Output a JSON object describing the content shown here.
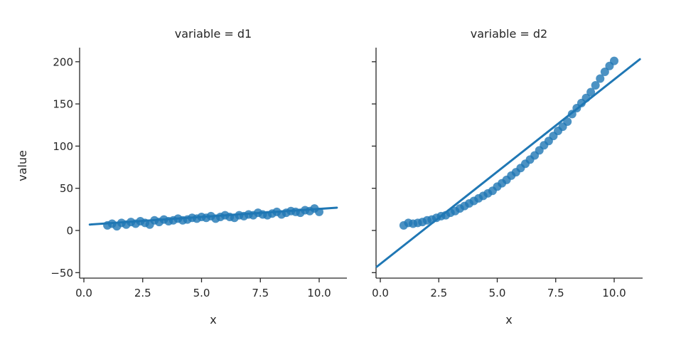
{
  "chart_data": {
    "type": "scatter",
    "layout": "facet-grid (1 row x 2 cols, sharey)",
    "ylabel": "value",
    "ylim": [
      -57,
      216
    ],
    "yticks": [
      -50,
      0,
      50,
      100,
      150,
      200
    ],
    "ytick_labels": [
      "−50",
      "0",
      "50",
      "100",
      "150",
      "200"
    ],
    "xticks": [
      0.0,
      2.5,
      5.0,
      7.5,
      10.0
    ],
    "xtick_labels": [
      "0.0",
      "2.5",
      "5.0",
      "7.5",
      "10.0"
    ],
    "grid": false,
    "color": "#1f77b4",
    "panels": [
      {
        "title": "variable = d1",
        "xlabel": "x",
        "xlim": [
          -0.2,
          11.2
        ],
        "regression": {
          "x0": 0.25,
          "y0": 7,
          "x1": 10.75,
          "y1": 27
        },
        "x": [
          1.0,
          1.2,
          1.4,
          1.6,
          1.8,
          2.0,
          2.2,
          2.4,
          2.6,
          2.8,
          3.0,
          3.2,
          3.4,
          3.6,
          3.8,
          4.0,
          4.2,
          4.4,
          4.6,
          4.8,
          5.0,
          5.2,
          5.4,
          5.6,
          5.8,
          6.0,
          6.2,
          6.4,
          6.6,
          6.8,
          7.0,
          7.2,
          7.4,
          7.6,
          7.8,
          8.0,
          8.2,
          8.4,
          8.6,
          8.8,
          9.0,
          9.2,
          9.4,
          9.6,
          9.8,
          10.0
        ],
        "y": [
          6,
          8,
          5,
          9,
          7,
          10,
          8,
          11,
          9,
          7,
          12,
          10,
          13,
          11,
          12,
          14,
          12,
          13,
          15,
          14,
          16,
          15,
          17,
          14,
          16,
          18,
          16,
          15,
          18,
          17,
          19,
          18,
          21,
          19,
          18,
          20,
          22,
          19,
          21,
          23,
          22,
          21,
          24,
          23,
          26,
          22
        ]
      },
      {
        "title": "variable = d2",
        "xlabel": "x",
        "xlim": [
          -0.2,
          11.2
        ],
        "regression": {
          "x0": -0.15,
          "y0": -43,
          "x1": 11.1,
          "y1": 203
        },
        "x": [
          1.0,
          1.2,
          1.4,
          1.6,
          1.8,
          2.0,
          2.2,
          2.4,
          2.6,
          2.8,
          3.0,
          3.2,
          3.4,
          3.6,
          3.8,
          4.0,
          4.2,
          4.4,
          4.6,
          4.8,
          5.0,
          5.2,
          5.4,
          5.6,
          5.8,
          6.0,
          6.2,
          6.4,
          6.6,
          6.8,
          7.0,
          7.2,
          7.4,
          7.6,
          7.8,
          8.0,
          8.2,
          8.4,
          8.6,
          8.8,
          9.0,
          9.2,
          9.4,
          9.6,
          9.8,
          10.0
        ],
        "y": [
          6,
          9,
          8,
          9,
          10,
          12,
          13,
          15,
          17,
          18,
          21,
          23,
          26,
          29,
          32,
          35,
          38,
          41,
          44,
          47,
          52,
          56,
          60,
          65,
          69,
          74,
          79,
          84,
          89,
          95,
          101,
          106,
          112,
          118,
          123,
          129,
          138,
          145,
          151,
          157,
          164,
          172,
          180,
          188,
          195,
          201
        ]
      }
    ]
  }
}
